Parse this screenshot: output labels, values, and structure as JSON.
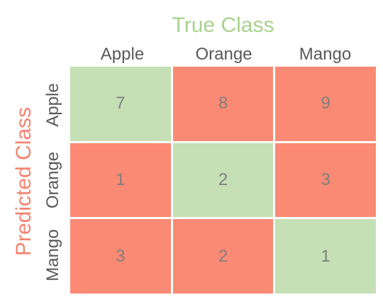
{
  "true_class_title": "True Class",
  "predicted_class_title": "Predicted Class",
  "column_headers": [
    "Apple",
    "Orange",
    "Mango"
  ],
  "row_headers": [
    "Apple",
    "Orange",
    "Mango"
  ],
  "matrix": [
    [
      "7",
      "8",
      "9"
    ],
    [
      "1",
      "2",
      "3"
    ],
    [
      "3",
      "2",
      "1"
    ]
  ],
  "colors": {
    "correct_cell": "#c5e0b4",
    "incorrect_cell": "#fa8a74",
    "true_class_title": "#a9d18e",
    "predicted_class_title": "#f4826e",
    "label_text": "#595959",
    "cell_text": "#7f7f7f"
  }
}
